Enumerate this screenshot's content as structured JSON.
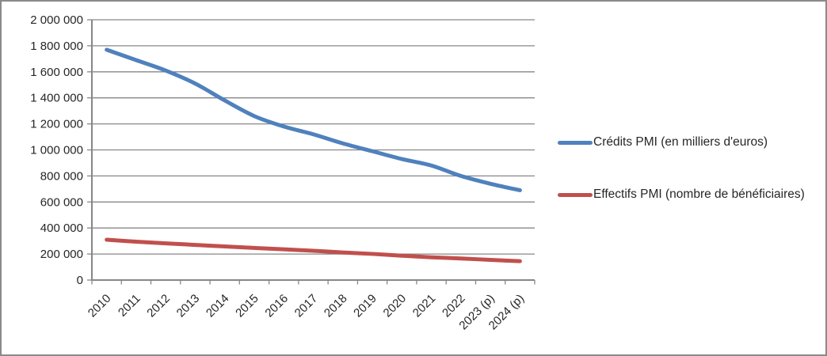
{
  "chart_data": {
    "type": "line",
    "title": "",
    "xlabel": "",
    "ylabel": "",
    "categories": [
      "2010",
      "2011",
      "2012",
      "2013",
      "2014",
      "2015",
      "2016",
      "2017",
      "2018",
      "2019",
      "2020",
      "2021",
      "2022",
      "2023 (p)",
      "2024 (p)"
    ],
    "series": [
      {
        "name": "Crédits PMI (en milliers d'euros)",
        "color": "#4F81BD",
        "values": [
          1770000,
          1690000,
          1610000,
          1510000,
          1380000,
          1260000,
          1180000,
          1120000,
          1050000,
          990000,
          930000,
          880000,
          800000,
          740000,
          690000
        ]
      },
      {
        "name": "Effectifs PMI (nombre de bénéficiaires)",
        "color": "#C0504D",
        "values": [
          310000,
          295000,
          282000,
          270000,
          258000,
          247000,
          236000,
          225000,
          212000,
          201000,
          187000,
          175000,
          166000,
          155000,
          145000
        ]
      }
    ],
    "ylim": [
      0,
      2000000
    ],
    "y_tick_step": 200000,
    "y_tick_labels": [
      "0",
      "200 000",
      "400 000",
      "600 000",
      "800 000",
      "1 000 000",
      "1 200 000",
      "1 400 000",
      "1 600 000",
      "1 800 000",
      "2 000 000"
    ],
    "grid": true,
    "smooth_lines": true,
    "legend_position": "right"
  },
  "styles": {
    "grid_color": "#878787",
    "axis_color": "#878787",
    "text_color": "#262626",
    "background": "#ffffff",
    "border_color": "#8a8a8a"
  }
}
